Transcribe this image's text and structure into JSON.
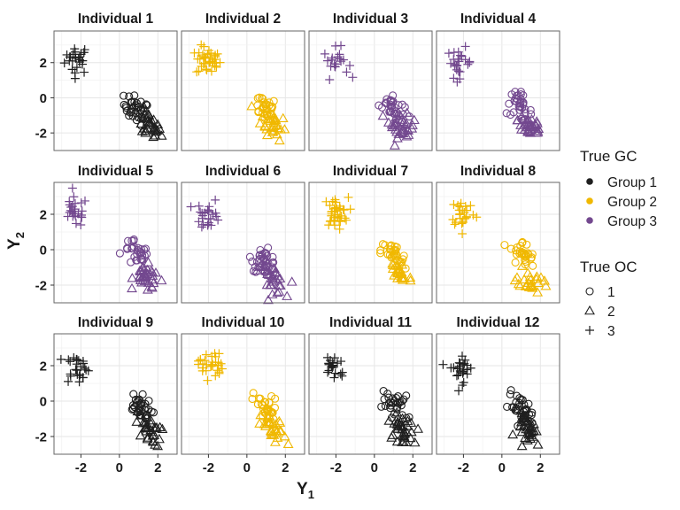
{
  "chart_data": {
    "type": "scatter",
    "layout": "facet grid, 3 rows x 4 columns",
    "xlabel": "Y",
    "xlabel_sub": "1",
    "ylabel": "Y",
    "ylabel_sub": "2",
    "xlim": [
      -3.4,
      3.0
    ],
    "ylim": [
      -3.0,
      3.8
    ],
    "x_ticks": [
      -2,
      0,
      2
    ],
    "y_ticks": [
      -2,
      0,
      2
    ],
    "grid": true,
    "legend_placement": "right",
    "legends": {
      "color": {
        "title": "True GC",
        "entries": [
          {
            "label": "Group 1",
            "color": "#1f1f1f"
          },
          {
            "label": "Group 2",
            "color": "#f0b800"
          },
          {
            "label": "Group 3",
            "color": "#73488f"
          }
        ]
      },
      "shape": {
        "title": "True OC",
        "entries": [
          {
            "label": "1",
            "shape": "circle"
          },
          {
            "label": "2",
            "shape": "triangle"
          },
          {
            "label": "3",
            "shape": "plus"
          }
        ]
      }
    },
    "panels": [
      {
        "title": "Individual 1",
        "group": 1,
        "clusters": {
          "plus": {
            "center": [
              -2.2,
              2.2
            ],
            "n": 25
          },
          "circle": {
            "center": [
              0.9,
              -0.7
            ],
            "n": 35
          },
          "triangle": {
            "center": [
              1.5,
              -1.6
            ],
            "n": 30
          }
        }
      },
      {
        "title": "Individual 2",
        "group": 2,
        "clusters": {
          "plus": {
            "center": [
              -2.0,
              2.1
            ],
            "n": 35
          },
          "circle": {
            "center": [
              0.9,
              -0.5
            ],
            "n": 30
          },
          "triangle": {
            "center": [
              1.4,
              -1.5
            ],
            "n": 30
          }
        }
      },
      {
        "title": "Individual 3",
        "group": 3,
        "clusters": {
          "plus": {
            "center": [
              -2.0,
              2.0
            ],
            "n": 20
          },
          "circle": {
            "center": [
              0.9,
              -0.5
            ],
            "n": 30
          },
          "triangle": {
            "center": [
              1.4,
              -1.6
            ],
            "n": 35
          }
        }
      },
      {
        "title": "Individual 4",
        "group": 3,
        "clusters": {
          "plus": {
            "center": [
              -2.2,
              2.0
            ],
            "n": 25
          },
          "circle": {
            "center": [
              0.9,
              -0.5
            ],
            "n": 35
          },
          "triangle": {
            "center": [
              1.5,
              -1.6
            ],
            "n": 35
          }
        }
      },
      {
        "title": "Individual 5",
        "group": 3,
        "clusters": {
          "plus": {
            "center": [
              -2.3,
              2.1
            ],
            "n": 25
          },
          "circle": {
            "center": [
              0.9,
              -0.3
            ],
            "n": 30
          },
          "triangle": {
            "center": [
              1.4,
              -1.6
            ],
            "n": 35
          }
        }
      },
      {
        "title": "Individual 6",
        "group": 3,
        "clusters": {
          "plus": {
            "center": [
              -2.0,
              2.0
            ],
            "n": 25
          },
          "circle": {
            "center": [
              0.9,
              -0.7
            ],
            "n": 35
          },
          "triangle": {
            "center": [
              1.3,
              -1.6
            ],
            "n": 30
          }
        }
      },
      {
        "title": "Individual 7",
        "group": 2,
        "clusters": {
          "plus": {
            "center": [
              -2.0,
              2.1
            ],
            "n": 35
          },
          "circle": {
            "center": [
              1.0,
              -0.4
            ],
            "n": 30
          },
          "triangle": {
            "center": [
              1.3,
              -1.3
            ],
            "n": 25
          }
        }
      },
      {
        "title": "Individual 8",
        "group": 2,
        "clusters": {
          "plus": {
            "center": [
              -2.0,
              2.1
            ],
            "n": 25
          },
          "circle": {
            "center": [
              1.1,
              -0.3
            ],
            "n": 30
          },
          "triangle": {
            "center": [
              1.5,
              -1.7
            ],
            "n": 25
          }
        }
      },
      {
        "title": "Individual 9",
        "group": 1,
        "clusters": {
          "plus": {
            "center": [
              -2.2,
              1.9
            ],
            "n": 25
          },
          "circle": {
            "center": [
              1.0,
              -0.4
            ],
            "n": 35
          },
          "triangle": {
            "center": [
              1.5,
              -1.6
            ],
            "n": 30
          }
        }
      },
      {
        "title": "Individual 10",
        "group": 2,
        "clusters": {
          "plus": {
            "center": [
              -1.9,
              2.1
            ],
            "n": 30
          },
          "circle": {
            "center": [
              1.0,
              -0.4
            ],
            "n": 30
          },
          "triangle": {
            "center": [
              1.4,
              -1.7
            ],
            "n": 30
          }
        }
      },
      {
        "title": "Individual 11",
        "group": 1,
        "clusters": {
          "plus": {
            "center": [
              -2.1,
              2.0
            ],
            "n": 20
          },
          "circle": {
            "center": [
              1.1,
              -0.2
            ],
            "n": 30
          },
          "triangle": {
            "center": [
              1.4,
              -1.6
            ],
            "n": 35
          }
        }
      },
      {
        "title": "Individual 12",
        "group": 1,
        "clusters": {
          "plus": {
            "center": [
              -2.1,
              1.9
            ],
            "n": 25
          },
          "circle": {
            "center": [
              1.0,
              -0.5
            ],
            "n": 35
          },
          "triangle": {
            "center": [
              1.5,
              -1.7
            ],
            "n": 35
          }
        }
      }
    ]
  }
}
